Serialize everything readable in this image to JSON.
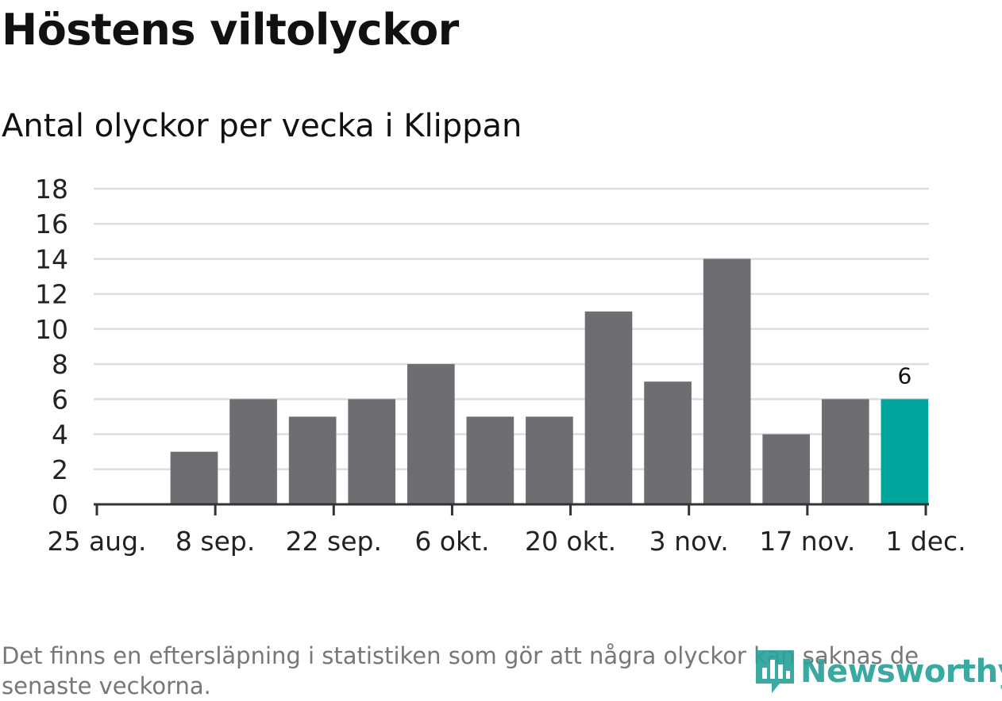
{
  "header": {
    "title": "Höstens viltolyckor",
    "subtitle": "Antal olyckor per vecka i Klippan"
  },
  "footer": {
    "note": "Det finns en eftersläpning i statistiken som gör att några olyckor kan saknas de senaste veckorna.",
    "logo_text": "Newsworthy"
  },
  "colors": {
    "bar": "#6e6d72",
    "highlight": "#00a59b",
    "grid": "#dddddd",
    "axis": "#333333",
    "logo": "#2aa39a"
  },
  "chart_data": {
    "type": "bar",
    "title": "Antal olyckor per vecka i Klippan",
    "xlabel": "",
    "ylabel": "",
    "ylim": [
      0,
      18
    ],
    "yticks": [
      0,
      2,
      4,
      6,
      8,
      10,
      12,
      14,
      16,
      18
    ],
    "x_tick_labels": [
      "25 aug.",
      "8 sep.",
      "22 sep.",
      "6 okt.",
      "20 okt.",
      "3 nov.",
      "17 nov.",
      "1 dec."
    ],
    "x_tick_dates": [
      "2019-08-25",
      "2019-09-08",
      "2019-09-22",
      "2019-10-06",
      "2019-10-20",
      "2019-11-03",
      "2019-11-17",
      "2019-12-01"
    ],
    "categories": [
      "2019-08-26",
      "2019-09-02",
      "2019-09-09",
      "2019-09-16",
      "2019-09-23",
      "2019-09-30",
      "2019-10-07",
      "2019-10-14",
      "2019-10-21",
      "2019-10-28",
      "2019-11-04",
      "2019-11-11",
      "2019-11-18",
      "2019-11-25"
    ],
    "values": [
      0,
      3,
      6,
      5,
      6,
      8,
      5,
      5,
      11,
      7,
      14,
      4,
      6,
      6
    ],
    "highlight_index": 13,
    "data_labels": [
      {
        "index": 13,
        "text": "6"
      }
    ],
    "grid": true,
    "legend": "none"
  }
}
